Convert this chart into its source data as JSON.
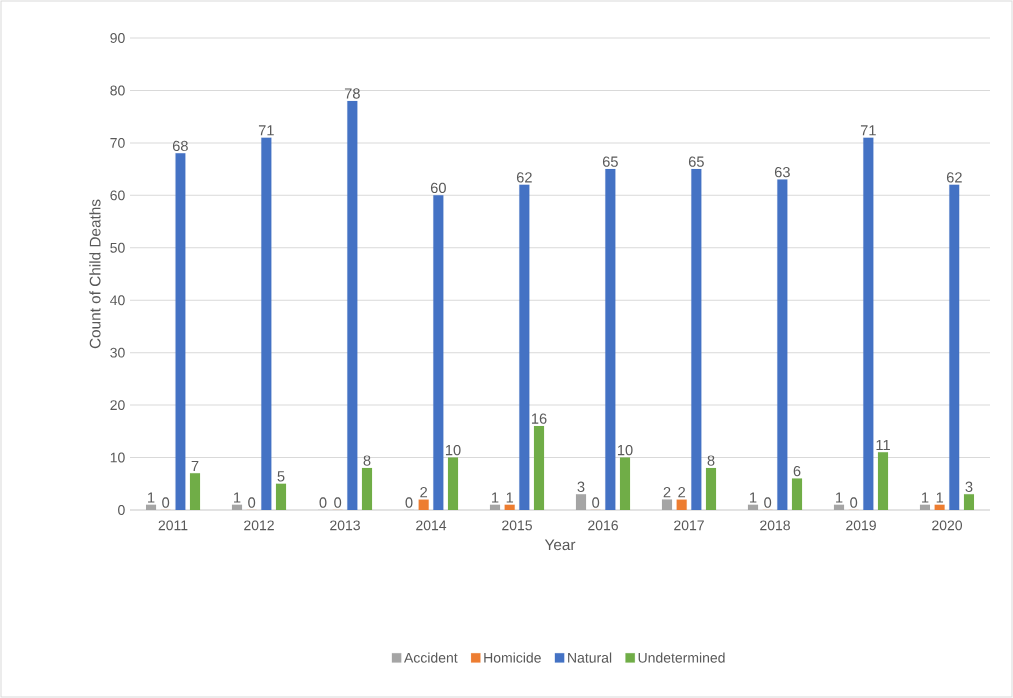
{
  "chart_data": {
    "type": "bar",
    "xlabel": "Year",
    "ylabel": "Count of Child Deaths",
    "categories": [
      "2011",
      "2012",
      "2013",
      "2014",
      "2015",
      "2016",
      "2017",
      "2018",
      "2019",
      "2020"
    ],
    "series": [
      {
        "name": "Accident",
        "color": "#a5a5a5",
        "values": [
          1,
          1,
          0,
          0,
          1,
          3,
          2,
          1,
          1,
          1
        ]
      },
      {
        "name": "Homicide",
        "color": "#ed7d31",
        "values": [
          0,
          0,
          0,
          2,
          1,
          0,
          2,
          0,
          0,
          1
        ]
      },
      {
        "name": "Natural",
        "color": "#4472c4",
        "values": [
          68,
          71,
          78,
          60,
          62,
          65,
          65,
          63,
          71,
          62
        ]
      },
      {
        "name": "Undetermined",
        "color": "#70ad47",
        "values": [
          7,
          5,
          8,
          10,
          16,
          10,
          8,
          6,
          11,
          3
        ]
      }
    ],
    "ylim": [
      0,
      90
    ],
    "yticks": [
      0,
      10,
      20,
      30,
      40,
      50,
      60,
      70,
      80,
      90
    ],
    "grid": "y",
    "legend": "bottom",
    "data_labels": true
  }
}
